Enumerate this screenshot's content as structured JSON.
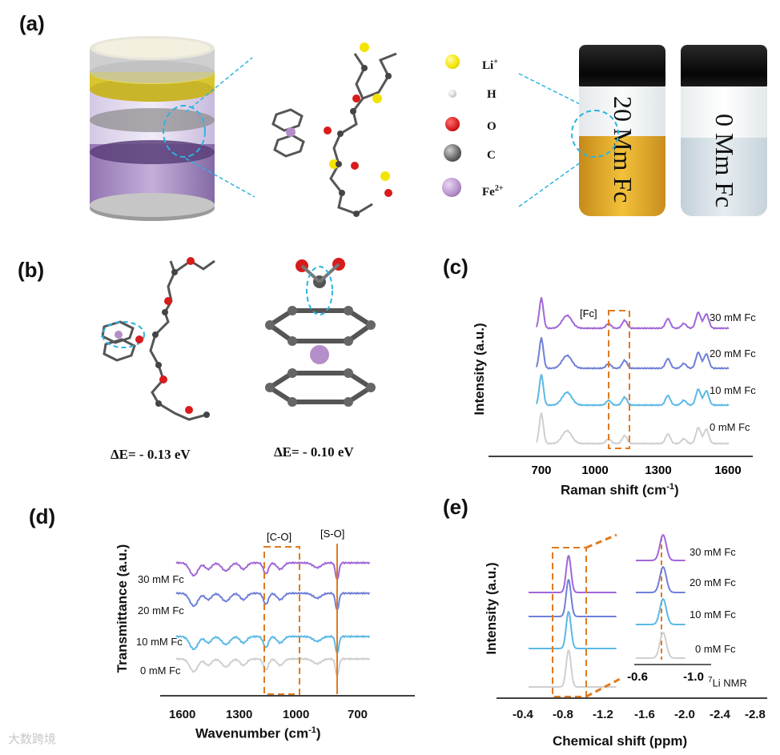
{
  "panels": {
    "a": "(a)",
    "b": "(b)",
    "c": "(c)",
    "d": "(d)",
    "e": "(e)"
  },
  "legend": {
    "items": [
      {
        "symbol": "Li",
        "sup": "+",
        "color": "#f2e400"
      },
      {
        "symbol": "H",
        "sup": "",
        "color": "#e6e6e6"
      },
      {
        "symbol": "O",
        "sup": "",
        "color": "#d81b1b"
      },
      {
        "symbol": "C",
        "sup": "",
        "color": "#606060"
      },
      {
        "symbol": "Fe",
        "sup": "2+",
        "color": "#b48ec8"
      }
    ]
  },
  "vials": {
    "left_label": "20 Mm Fc",
    "right_label": "0 Mm Fc",
    "left_liquid": "#e0a92a",
    "right_liquid": "#d6e2ea"
  },
  "panel_b": {
    "energy_left": "ΔE= - 0.13 eV",
    "energy_right": "ΔE= - 0.10 eV"
  },
  "colors": {
    "30": "#a067d8",
    "20": "#6f7fd8",
    "10": "#5cb9e6",
    "0": "#cfcfcf",
    "marker": "#e07a20"
  },
  "panel_c": {
    "xlabel": "Raman shift (cm",
    "xlabel_sup": "-1",
    "xlabel_end": ")",
    "ylabel": "Intensity (a.u.)",
    "xticks": [
      "700",
      "1000",
      "1300",
      "1600"
    ],
    "box_label": "[Fc]",
    "series": [
      "30 mM Fc",
      "20 mM Fc",
      "10 mM Fc",
      "0 mM Fc"
    ]
  },
  "panel_d": {
    "xlabel": "Wavenumber (cm",
    "xlabel_sup": "-1",
    "xlabel_end": ")",
    "ylabel": "Transmittance (a.u.)",
    "xticks": [
      "1600",
      "1300",
      "1000",
      "700"
    ],
    "box_label": "[C-O]",
    "line_label": "[S-O]",
    "series": [
      "30 mM Fc",
      "20 mM Fc",
      "10 mM Fc",
      "0 mM Fc"
    ]
  },
  "panel_e": {
    "xlabel": "Chemical shift (ppm)",
    "ylabel": "Intensity (a.u.)",
    "xticks": [
      "-0.4",
      "-0.8",
      "-1.2",
      "-1.6",
      "-2.0",
      "-2.4",
      "-2.8"
    ],
    "inset_ticks": [
      "-0.6",
      "-1.0"
    ],
    "nmr_label": "Li NMR",
    "nmr_sup": "7",
    "series": [
      "30 mM Fc",
      "20 mM Fc",
      "10 mM Fc",
      "0 mM Fc"
    ]
  },
  "watermark": "大数跨境"
}
